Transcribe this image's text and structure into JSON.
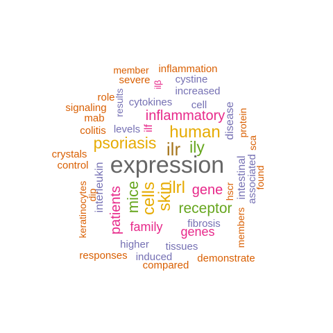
{
  "colors": {
    "orange": "#d95f02",
    "purple": "#7570b3",
    "magenta": "#e7298a",
    "green": "#66a61e",
    "gold": "#e6ab02",
    "brown": "#a6761d",
    "gray": "#666666"
  },
  "words": [
    {
      "text": "expression",
      "color": "gray"
    },
    {
      "text": "ilr",
      "color": "brown"
    },
    {
      "text": "human",
      "color": "gold"
    },
    {
      "text": "psoriasis",
      "color": "gold"
    },
    {
      "text": "ilrl",
      "color": "gold"
    },
    {
      "text": "ily",
      "color": "green"
    },
    {
      "text": "skin",
      "color": "gold"
    },
    {
      "text": "cells",
      "color": "gold"
    },
    {
      "text": "mice",
      "color": "green"
    },
    {
      "text": "receptor",
      "color": "green"
    },
    {
      "text": "inflammatory",
      "color": "magenta"
    },
    {
      "text": "gene",
      "color": "magenta"
    },
    {
      "text": "patients",
      "color": "magenta"
    },
    {
      "text": "genes",
      "color": "magenta"
    },
    {
      "text": "family",
      "color": "magenta"
    },
    {
      "text": "ilf",
      "color": "magenta"
    },
    {
      "text": "disease",
      "color": "purple"
    },
    {
      "text": "intestinal",
      "color": "purple"
    },
    {
      "text": "associated",
      "color": "purple"
    },
    {
      "text": "interleukin",
      "color": "purple"
    },
    {
      "text": "fibrosis",
      "color": "purple"
    },
    {
      "text": "increased",
      "color": "purple"
    },
    {
      "text": "cytokines",
      "color": "purple"
    },
    {
      "text": "cell",
      "color": "purple"
    },
    {
      "text": "cystine",
      "color": "purple"
    },
    {
      "text": "results",
      "color": "purple"
    },
    {
      "text": "levels",
      "color": "purple"
    },
    {
      "text": "higher",
      "color": "purple"
    },
    {
      "text": "tissues",
      "color": "purple"
    },
    {
      "text": "induced",
      "color": "purple"
    },
    {
      "text": "ilβ",
      "color": "magenta"
    },
    {
      "text": "protein",
      "color": "orange"
    },
    {
      "text": "sca",
      "color": "orange"
    },
    {
      "text": "found",
      "color": "orange"
    },
    {
      "text": "members",
      "color": "orange"
    },
    {
      "text": "hscr",
      "color": "orange"
    },
    {
      "text": "member",
      "color": "orange"
    },
    {
      "text": "inflammation",
      "color": "orange"
    },
    {
      "text": "severe",
      "color": "orange"
    },
    {
      "text": "role",
      "color": "orange"
    },
    {
      "text": "signaling",
      "color": "orange"
    },
    {
      "text": "mab",
      "color": "orange"
    },
    {
      "text": "colitis",
      "color": "orange"
    },
    {
      "text": "crystals",
      "color": "orange"
    },
    {
      "text": "control",
      "color": "orange"
    },
    {
      "text": "keratinocytes",
      "color": "orange"
    },
    {
      "text": "dip",
      "color": "orange"
    },
    {
      "text": "responses",
      "color": "orange"
    },
    {
      "text": "compared",
      "color": "orange"
    },
    {
      "text": "demonstrate",
      "color": "orange"
    }
  ]
}
